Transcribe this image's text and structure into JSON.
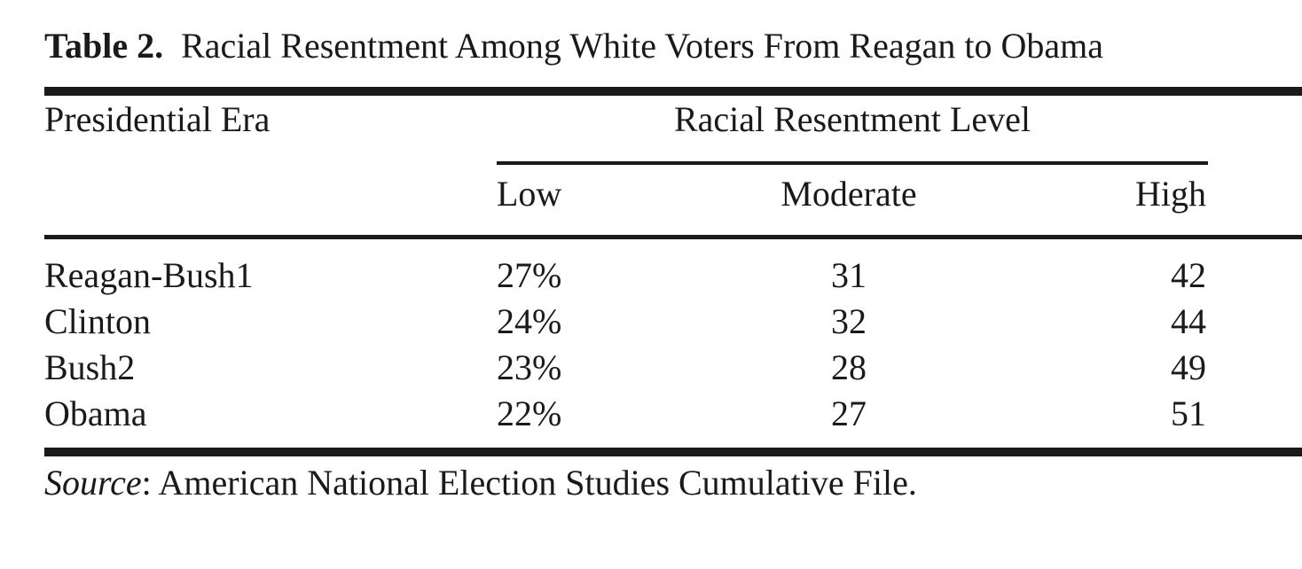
{
  "caption": {
    "label": "Table 2.",
    "title": "Racial Resentment Among White Voters From Reagan to Obama"
  },
  "table": {
    "row_header": "Presidential Era",
    "group_header": "Racial Resentment Level",
    "columns": [
      "Low",
      "Moderate",
      "High"
    ],
    "rows": [
      {
        "era": "Reagan-Bush1",
        "low": "27%",
        "moderate": "31",
        "high": "42"
      },
      {
        "era": "Clinton",
        "low": "24%",
        "moderate": "32",
        "high": "44"
      },
      {
        "era": "Bush2",
        "low": "23%",
        "moderate": "28",
        "high": "49"
      },
      {
        "era": "Obama",
        "low": "22%",
        "moderate": "27",
        "high": "51"
      }
    ]
  },
  "source": {
    "label": "Source",
    "text": ": American National Election Studies Cumulative File."
  }
}
